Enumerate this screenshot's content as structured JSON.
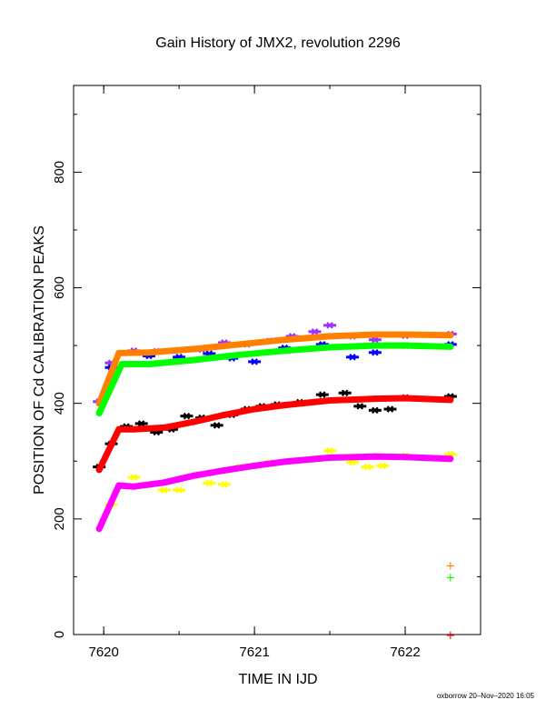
{
  "chart_data": {
    "type": "scatter",
    "title": "Gain History of JMX2, revolution 2296",
    "xlabel": "TIME IN IJD",
    "ylabel": "POSITION OF Cd CALIBRATION PEAKS",
    "xlim": [
      7619.8,
      7622.5
    ],
    "ylim": [
      0,
      950
    ],
    "x_ticks": [
      7620,
      7621,
      7622
    ],
    "x_tick_labels": [
      "7620",
      "7621",
      "7622"
    ],
    "y_ticks": [
      0,
      200,
      400,
      600,
      800
    ],
    "y_tick_labels": [
      "0",
      "200",
      "400",
      "600",
      "800"
    ],
    "grid": false,
    "footer": "oxborrow 20–Nov–2020 16:05",
    "colors": {
      "orange": "#ff8000",
      "green": "#00ff00",
      "red": "#ff0000",
      "magenta": "#ff00ff",
      "purple": "#9b30ff",
      "blue": "#0000ff",
      "black": "#000000",
      "yellow": "#ffff00"
    },
    "series": [
      {
        "color": "#ff8000",
        "style": "fit",
        "x": [
          7619.97,
          7620.1,
          7620.3,
          7620.6,
          7620.9,
          7621.2,
          7621.5,
          7621.8,
          7622.0,
          7622.3
        ],
        "y": [
          400,
          487,
          488,
          494,
          502,
          510,
          516,
          519,
          519,
          518
        ]
      },
      {
        "color": "#00ff00",
        "style": "fit",
        "x": [
          7619.97,
          7620.12,
          7620.3,
          7620.6,
          7620.9,
          7621.2,
          7621.5,
          7621.8,
          7622.0,
          7622.3
        ],
        "y": [
          383,
          468,
          468,
          475,
          484,
          491,
          497,
          500,
          500,
          498
        ]
      },
      {
        "color": "#ff0000",
        "style": "fit",
        "x": [
          7619.97,
          7620.1,
          7620.2,
          7620.4,
          7620.6,
          7620.8,
          7621.0,
          7621.2,
          7621.5,
          7621.8,
          7622.0,
          7622.3
        ],
        "y": [
          285,
          355,
          355,
          358,
          368,
          380,
          390,
          397,
          405,
          408,
          409,
          406
        ]
      },
      {
        "color": "#ff00ff",
        "style": "fit",
        "x": [
          7619.97,
          7620.1,
          7620.2,
          7620.4,
          7620.6,
          7620.8,
          7621.0,
          7621.2,
          7621.5,
          7621.8,
          7622.0,
          7622.3
        ],
        "y": [
          183,
          258,
          256,
          263,
          275,
          284,
          292,
          299,
          306,
          308,
          307,
          304
        ]
      },
      {
        "color": "#9b30ff",
        "style": "points",
        "x": [
          7619.97,
          7620.05,
          7620.2,
          7620.35,
          7620.5,
          7620.65,
          7620.8,
          7620.95,
          7621.1,
          7621.25,
          7621.4,
          7621.5,
          7621.65,
          7621.8,
          7622.0,
          7622.3
        ],
        "y": [
          403,
          470,
          491,
          490,
          492,
          493,
          505,
          502,
          508,
          516,
          524,
          535,
          516,
          510,
          517,
          520
        ]
      },
      {
        "color": "#0000ff",
        "style": "points",
        "x": [
          7620.05,
          7620.3,
          7620.5,
          7620.7,
          7620.85,
          7621.0,
          7621.2,
          7621.45,
          7621.65,
          7621.8,
          7622.0,
          7622.3
        ],
        "y": [
          462,
          482,
          480,
          486,
          478,
          472,
          496,
          502,
          480,
          488,
          500,
          502
        ]
      },
      {
        "color": "#000000",
        "style": "points",
        "x": [
          7619.97,
          7620.05,
          7620.15,
          7620.25,
          7620.35,
          7620.45,
          7620.55,
          7620.65,
          7620.75,
          7620.85,
          7620.95,
          7621.05,
          7621.15,
          7621.3,
          7621.45,
          7621.6,
          7621.7,
          7621.8,
          7621.9,
          7622.0,
          7622.3
        ],
        "y": [
          290,
          330,
          360,
          365,
          350,
          355,
          378,
          375,
          362,
          380,
          390,
          395,
          398,
          402,
          415,
          418,
          395,
          388,
          390,
          410,
          412
        ]
      },
      {
        "color": "#ffff00",
        "style": "points",
        "x": [
          7620.05,
          7620.2,
          7620.3,
          7620.4,
          7620.5,
          7620.6,
          7620.7,
          7620.8,
          7620.9,
          7621.0,
          7621.1,
          7621.25,
          7621.4,
          7621.5,
          7621.65,
          7621.75,
          7621.85,
          7622.0,
          7622.3
        ],
        "y": [
          225,
          272,
          258,
          250,
          250,
          275,
          262,
          260,
          290,
          292,
          298,
          300,
          305,
          318,
          298,
          290,
          292,
          310,
          312
        ]
      }
    ],
    "markers": [
      {
        "symbol": "+",
        "x": 7622.3,
        "y": 120,
        "color": "#ff8000"
      },
      {
        "symbol": "+",
        "x": 7622.3,
        "y": 100,
        "color": "#00ff00"
      },
      {
        "symbol": "+",
        "x": 7622.3,
        "y": 0,
        "color": "#ff0000"
      }
    ]
  }
}
